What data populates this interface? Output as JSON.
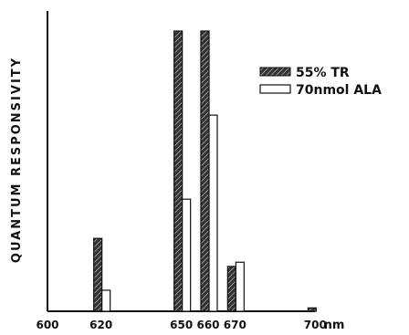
{
  "chart_data": {
    "type": "bar",
    "ylabel": "QUANTUM RESPONSIVITY",
    "xunit": "nm",
    "x_ticks": [
      600,
      620,
      650,
      660,
      670,
      700
    ],
    "xlim": [
      600,
      705
    ],
    "ylim": [
      0,
      1
    ],
    "y_ticks_shown": false,
    "grid": false,
    "legend_position": "top-right",
    "categories": [
      620,
      650,
      660,
      670,
      700
    ],
    "series": [
      {
        "name": "55% TR",
        "pattern": "hatched",
        "color": "#222222",
        "values": [
          0.26,
          1.0,
          1.0,
          0.16,
          0.012
        ]
      },
      {
        "name": "70nmol ALA",
        "pattern": "open",
        "color": "#ffffff",
        "values": [
          0.075,
          0.4,
          0.7,
          0.175,
          0.0
        ]
      }
    ]
  }
}
